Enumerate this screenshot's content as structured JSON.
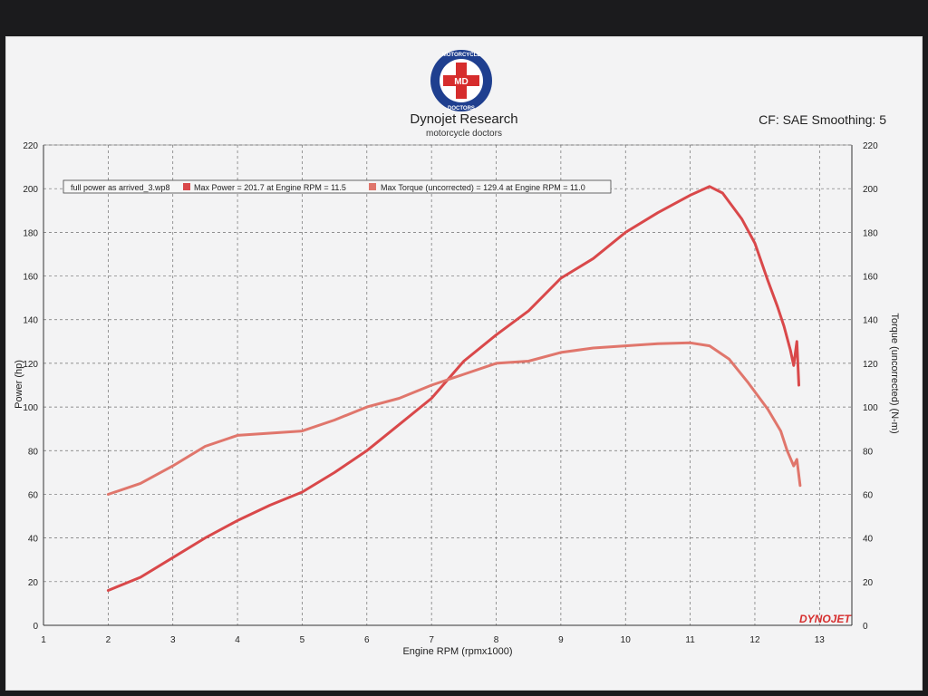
{
  "header": {
    "title": "Dynojet Research",
    "subtitle": "motorcycle doctors",
    "cf_text": "CF: SAE Smoothing: 5",
    "logo_text_top": "MOTORCYCLE",
    "logo_text_bottom": "DOCTORS",
    "logo_center": "MD",
    "brand": "DYNOJET"
  },
  "legend": {
    "file": "full power as arrived_3.wp8",
    "power": "Max Power = 201.7 at Engine RPM = 11.5",
    "torque": "Max Torque (uncorrected) = 129.4 at Engine RPM = 11.0"
  },
  "colors": {
    "power": "#d9484a",
    "torque": "#e0766c",
    "grid": "#6e6e6e",
    "logo_blue": "#1f3f8f",
    "logo_red": "#d62d2d"
  },
  "chart_data": {
    "type": "line",
    "xlabel": "Engine RPM (rpmx1000)",
    "ylabel": "Power (hp)",
    "y2label": "Torque (uncorrected) (N-m)",
    "xlim": [
      1,
      13.5
    ],
    "ylim": [
      0,
      220
    ],
    "y2lim": [
      0,
      220
    ],
    "x_ticks": [
      "1",
      "2",
      "3",
      "4",
      "5",
      "6",
      "7",
      "8",
      "9",
      "10",
      "11",
      "12",
      "13"
    ],
    "y_ticks": [
      "0",
      "20",
      "40",
      "60",
      "80",
      "100",
      "120",
      "140",
      "160",
      "180",
      "200",
      "220"
    ],
    "grid": true,
    "legend_position": "top-left",
    "series": [
      {
        "name": "Power",
        "axis": "left",
        "x": [
          2.0,
          2.5,
          3.0,
          3.5,
          4.0,
          4.5,
          5.0,
          5.5,
          6.0,
          6.5,
          7.0,
          7.5,
          8.0,
          8.5,
          9.0,
          9.5,
          10.0,
          10.5,
          11.0,
          11.3,
          11.5,
          11.8,
          12.0,
          12.2,
          12.35,
          12.45,
          12.55,
          12.6,
          12.65,
          12.68
        ],
        "values": [
          16,
          22,
          31,
          40,
          48,
          55,
          61,
          70,
          80,
          92,
          104,
          121,
          133,
          144,
          159,
          168,
          180,
          189,
          197,
          201,
          198,
          186,
          175,
          158,
          146,
          137,
          126,
          119,
          130,
          110
        ]
      },
      {
        "name": "Torque",
        "axis": "right",
        "x": [
          2.0,
          2.5,
          3.0,
          3.5,
          4.0,
          4.5,
          5.0,
          5.5,
          6.0,
          6.5,
          7.0,
          7.5,
          8.0,
          8.5,
          9.0,
          9.5,
          10.0,
          10.5,
          11.0,
          11.3,
          11.6,
          11.9,
          12.2,
          12.4,
          12.5,
          12.6,
          12.65,
          12.7
        ],
        "values": [
          60,
          65,
          73,
          82,
          87,
          88,
          89,
          94,
          100,
          104,
          110,
          115,
          120,
          121,
          125,
          127,
          128,
          129,
          129.4,
          128,
          122,
          111,
          99,
          89,
          80,
          73,
          76,
          64
        ]
      }
    ]
  }
}
